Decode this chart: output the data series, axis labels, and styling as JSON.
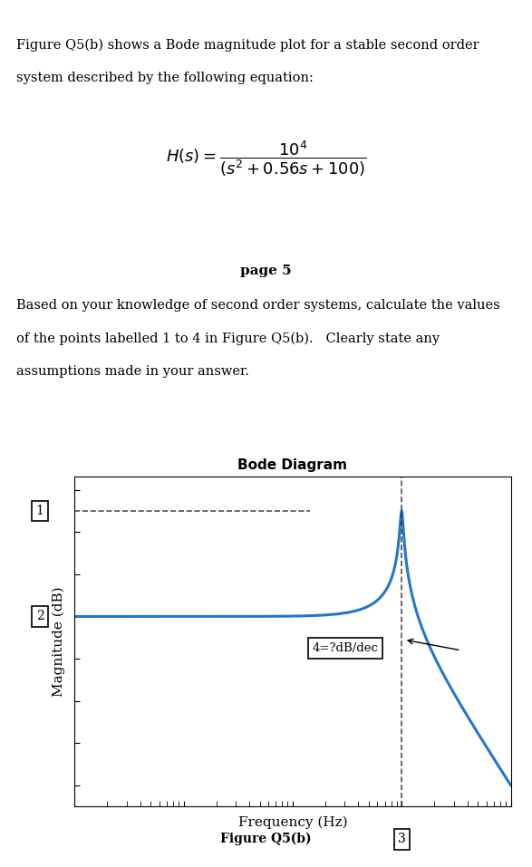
{
  "title_text": "Figure Q5(b) shows a Bode magnitude plot for a stable second order\nsystem described by the following equation:",
  "page_label": "page 5",
  "body_text": "Based on your knowledge of second order systems, calculate the values\nof the points labelled 1 to 4 in Figure Q5(b).   Clearly state any\nassumptions made in your answer.",
  "bode_title": "Bode Diagram",
  "xlabel": "Frequency (Hz)",
  "ylabel": "Magnitude (dB)",
  "figure_caption": "Figure Q5(b)",
  "label1": "1",
  "label2": "2",
  "label3": "3",
  "label4": "4=?dB/dec",
  "divider_color": "#2c2c2c",
  "line_color": "#2277cc",
  "dashed_color": "#333333",
  "background_color": "#ffffff",
  "num": 10000,
  "denom_wn2": 100,
  "denom_2zeta_wn": 0.56,
  "freq_min": 0.01,
  "freq_max": 100,
  "num_points": 2000
}
